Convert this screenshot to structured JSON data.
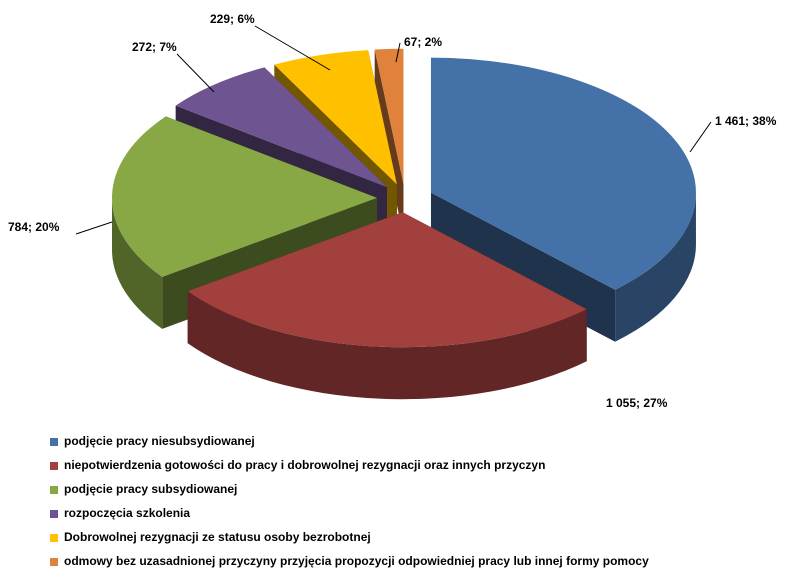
{
  "chart_data": {
    "type": "pie",
    "categories": [
      "podjęcie pracy niesubsydiowanej",
      "niepotwierdzenia gotowości do pracy i dobrowolnej rezygnacji oraz innych przyczyn",
      "podjęcie pracy subsydiowanej",
      "rozpoczęcia szkolenia",
      "Dobrowolnej rezygnacji ze statusu osoby bezrobotnej",
      "odmowy bez uzasadnionej przyczyny przyjęcia propozycji odpowiedniej pracy lub innej formy pomocy"
    ],
    "values": [
      1461,
      1055,
      784,
      272,
      229,
      67
    ],
    "value_labels": [
      "1 461; 38%",
      "1 055; 27%",
      "784; 20%",
      "272; 7%",
      "229; 6%",
      "67; 2%"
    ],
    "colors": [
      "#4472a8",
      "#a2403d",
      "#87a845",
      "#6e5592",
      "#ffc000",
      "#e0823b"
    ],
    "legend": "bottom"
  }
}
